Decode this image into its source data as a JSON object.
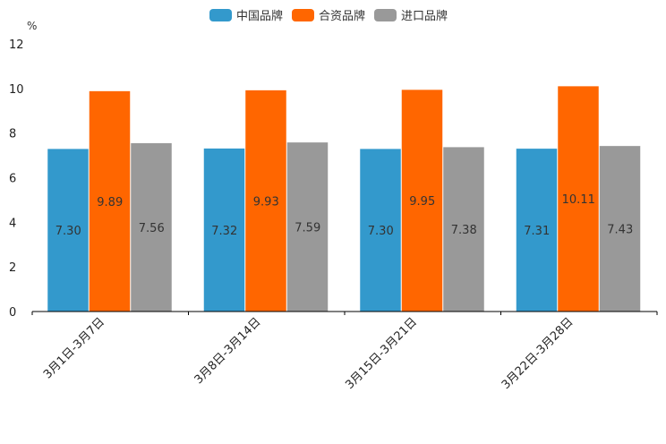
{
  "chart_data": {
    "type": "bar",
    "unit_label": "%",
    "categories": [
      "3月1日-3月7日",
      "3月8日-3月14日",
      "3月15日-3月21日",
      "3月22日-3月28日"
    ],
    "series": [
      {
        "name": "中国品牌",
        "color": "#3399CC",
        "values": [
          7.3,
          7.32,
          7.3,
          7.31
        ],
        "labels": [
          "7.30",
          "7.32",
          "7.30",
          "7.31"
        ]
      },
      {
        "name": "合资品牌",
        "color": "#FF6600",
        "values": [
          9.89,
          9.93,
          9.95,
          10.11
        ],
        "labels": [
          "9.89",
          "9.93",
          "9.95",
          "10.11"
        ]
      },
      {
        "name": "进口品牌",
        "color": "#999999",
        "values": [
          7.56,
          7.59,
          7.38,
          7.43
        ],
        "labels": [
          "7.56",
          "7.59",
          "7.38",
          "7.43"
        ]
      }
    ],
    "ylim": [
      0,
      12
    ],
    "yticks": [
      "0",
      "2",
      "4",
      "6",
      "8",
      "10",
      "12"
    ],
    "legend_position": "top-center"
  }
}
